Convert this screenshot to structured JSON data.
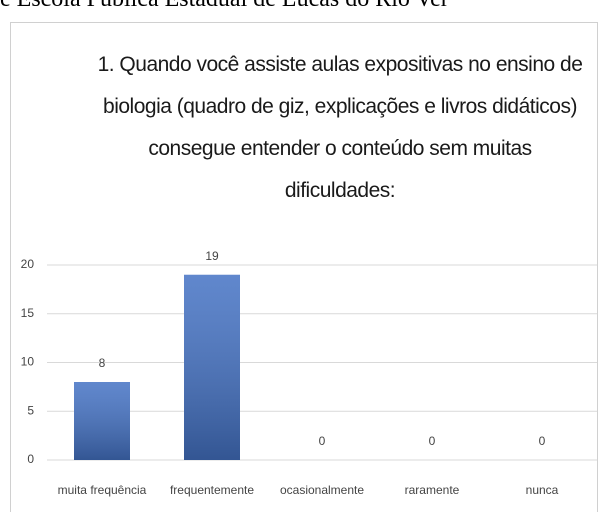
{
  "header_text": "e Escola Pública Estadual de Lucas do Rio Ver",
  "chart_data": {
    "type": "bar",
    "title": "1. Quando você assiste aulas expositivas no ensino de biologia (quadro de giz, explicações e livros didáticos) consegue entender o conteúdo sem muitas dificuldades:",
    "categories": [
      "muita frequência",
      "frequentemente",
      "ocasionalmente",
      "raramente",
      "nunca"
    ],
    "values": [
      8,
      19,
      0,
      0,
      0
    ],
    "color": "#4472c4",
    "ylim": [
      0,
      20
    ],
    "yticks": [
      0,
      5,
      10,
      15,
      20
    ],
    "grid": true
  }
}
